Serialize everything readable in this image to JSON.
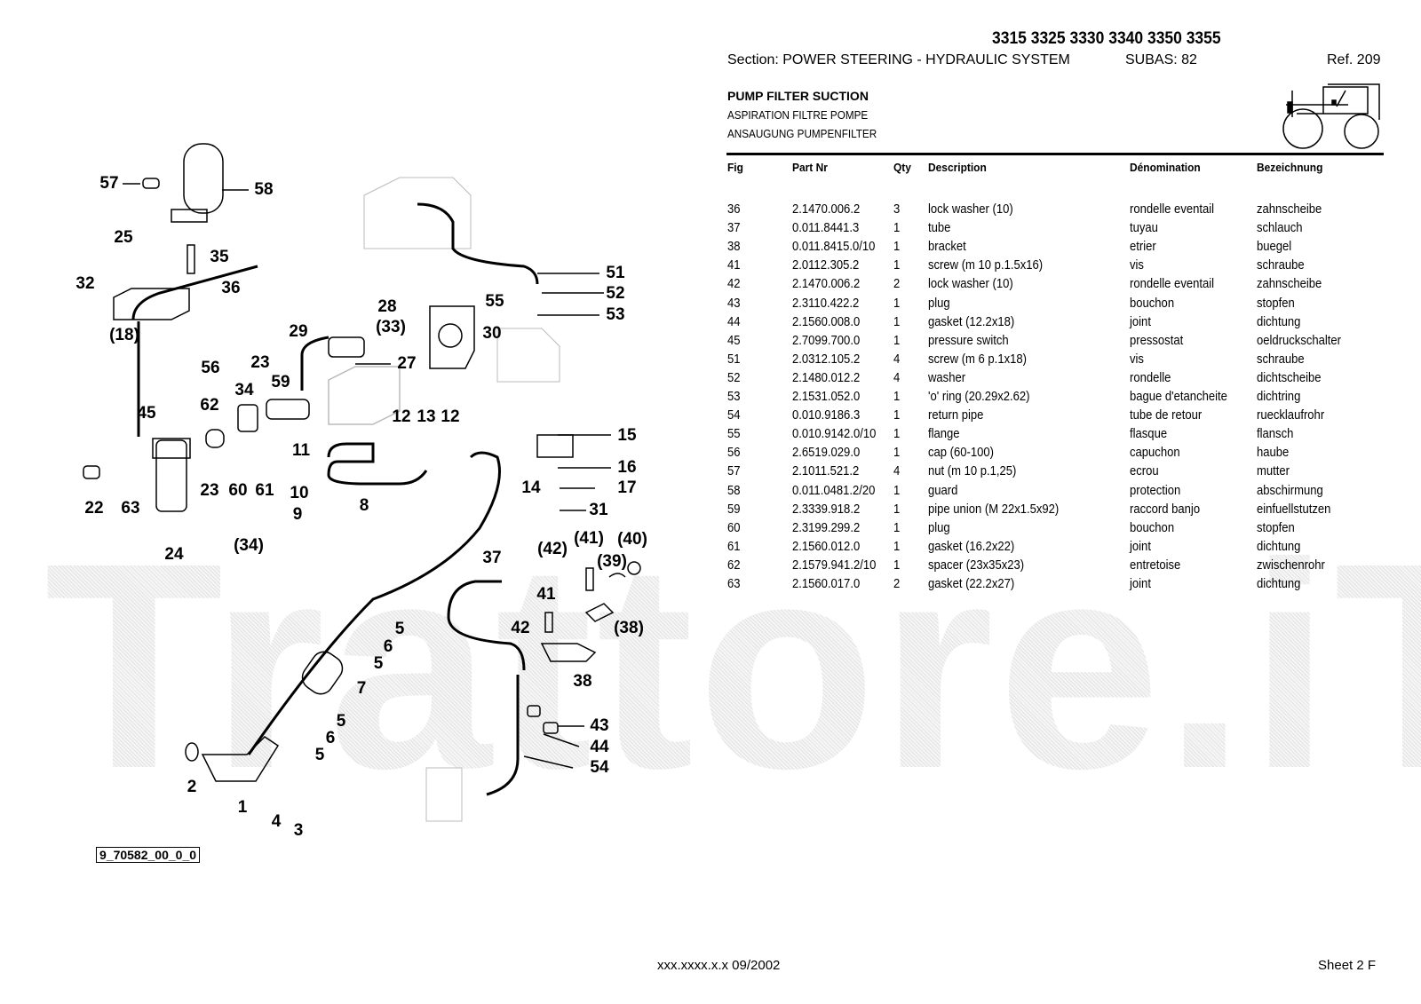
{
  "header": {
    "models": "3315 3325 3330 3340 3350 3355",
    "section": "Section: POWER STEERING - HYDRAULIC SYSTEM",
    "subas": "SUBAS: 82",
    "ref": "Ref. 209",
    "title_en": "PUMP FILTER SUCTION",
    "title_fr": "ASPIRATION FILTRE POMPE",
    "title_de": "ANSAUGUNG PUMPENFILTER"
  },
  "table": {
    "columns": [
      "Fig",
      "Part Nr",
      "Qty",
      "Description",
      "Dénomination",
      "Bezeichnung"
    ],
    "rows": [
      [
        "36",
        "2.1470.006.2",
        "3",
        "lock washer (10)",
        "rondelle eventail",
        "zahnscheibe"
      ],
      [
        "37",
        "0.011.8441.3",
        "1",
        "tube",
        "tuyau",
        "schlauch"
      ],
      [
        "38",
        "0.011.8415.0/10",
        "1",
        "bracket",
        "etrier",
        "buegel"
      ],
      [
        "41",
        "2.0112.305.2",
        "1",
        "screw (m 10 p.1.5x16)",
        "vis",
        "schraube"
      ],
      [
        "42",
        "2.1470.006.2",
        "2",
        "lock washer (10)",
        "rondelle eventail",
        "zahnscheibe"
      ],
      [
        "43",
        "2.3110.422.2",
        "1",
        "plug",
        "bouchon",
        "stopfen"
      ],
      [
        "44",
        "2.1560.008.0",
        "1",
        "gasket (12.2x18)",
        "joint",
        "dichtung"
      ],
      [
        "45",
        "2.7099.700.0",
        "1",
        "pressure switch",
        "pressostat",
        "oeldruckschalter"
      ],
      [
        "51",
        "2.0312.105.2",
        "4",
        "screw (m 6 p.1x18)",
        "vis",
        "schraube"
      ],
      [
        "52",
        "2.1480.012.2",
        "4",
        "washer",
        "rondelle",
        "dichtscheibe"
      ],
      [
        "53",
        "2.1531.052.0",
        "1",
        "'o' ring (20.29x2.62)",
        "bague d'etancheite",
        "dichtring"
      ],
      [
        "54",
        "0.010.9186.3",
        "1",
        "return pipe",
        "tube de retour",
        "ruecklaufrohr"
      ],
      [
        "55",
        "0.010.9142.0/10",
        "1",
        "flange",
        "flasque",
        "flansch"
      ],
      [
        "56",
        "2.6519.029.0",
        "1",
        "cap (60-100)",
        "capuchon",
        "haube"
      ],
      [
        "57",
        "2.1011.521.2",
        "4",
        "nut (m 10 p.1,25)",
        "ecrou",
        "mutter"
      ],
      [
        "58",
        "0.011.0481.2/20",
        "1",
        "guard",
        "protection",
        "abschirmung"
      ],
      [
        "59",
        "2.3339.918.2",
        "1",
        "pipe union (M 22x1.5x92)",
        "raccord banjo",
        "einfuellstutzen"
      ],
      [
        "60",
        "2.3199.299.2",
        "1",
        "plug",
        "bouchon",
        "stopfen"
      ],
      [
        "61",
        "2.1560.012.0",
        "1",
        "gasket (16.2x22)",
        "joint",
        "dichtung"
      ],
      [
        "62",
        "2.1579.941.2/10",
        "1",
        "spacer (23x35x23)",
        "entretoise",
        "zwischenrohr"
      ],
      [
        "63",
        "2.1560.017.0",
        "2",
        "gasket (22.2x27)",
        "joint",
        "dichtung"
      ]
    ]
  },
  "diagram": {
    "drawing_id": "9_70582_00_0_0",
    "callouts": [
      "57",
      "58",
      "25",
      "35",
      "32",
      "36",
      "(18)",
      "28",
      "29",
      "(33)",
      "30",
      "55",
      "51",
      "52",
      "53",
      "56",
      "27",
      "23",
      "34",
      "59",
      "45",
      "62",
      "11",
      "12",
      "13",
      "12",
      "15",
      "16",
      "17",
      "14",
      "31",
      "22",
      "63",
      "23",
      "60",
      "61",
      "10",
      "9",
      "8",
      "24",
      "(34)",
      "37",
      "(42)",
      "(41)",
      "(40)",
      "(39)",
      "41",
      "42",
      "(38)",
      "38",
      "5",
      "6",
      "5",
      "7",
      "5",
      "6",
      "5",
      "43",
      "44",
      "54",
      "2",
      "1",
      "4",
      "3"
    ]
  },
  "watermark": "Trattore.iT",
  "footer": {
    "code": "xxx.xxxx.x.x  09/2002",
    "sheet": "Sheet 2 F"
  }
}
